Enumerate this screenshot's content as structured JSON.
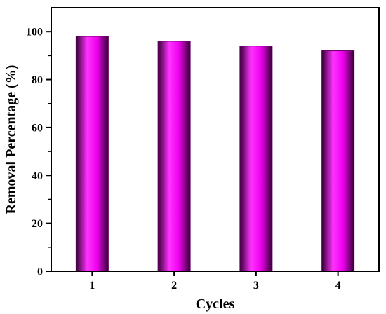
{
  "chart_data": {
    "type": "bar",
    "categories": [
      "1",
      "2",
      "3",
      "4"
    ],
    "values": [
      98,
      96,
      94,
      92
    ],
    "xlabel": "Cycles",
    "ylabel": "Removal Percentage (%)",
    "ylim": [
      0,
      110
    ],
    "yticks": [
      0,
      20,
      40,
      60,
      80,
      100
    ],
    "grid": false,
    "legend": "none",
    "colors": {
      "bar_edge": "#660066",
      "bar_light": "#ff33ff",
      "bar_mid": "#ee00ee",
      "bar_dark": "#330033",
      "axis": "#000000"
    }
  }
}
